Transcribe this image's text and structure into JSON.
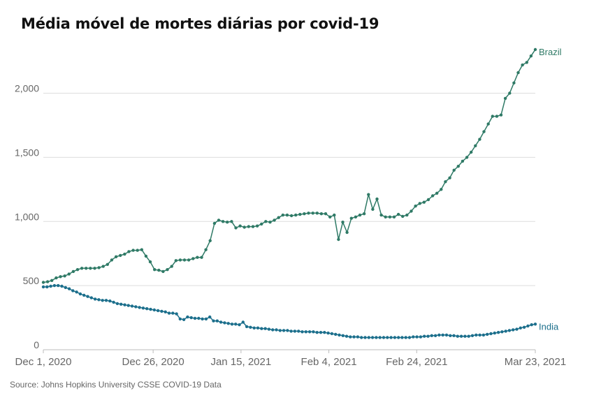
{
  "title": "Média móvel de mortes diárias por covid-19",
  "source": "Source: Johns Hopkins University CSSE COVID-19 Data",
  "chart_data": {
    "type": "line",
    "title": "Média móvel de mortes diárias por covid-19",
    "xlabel": "",
    "ylabel": "",
    "ylim": [
      0,
      2400
    ],
    "yticks": [
      0,
      500,
      1000,
      1500,
      2000
    ],
    "ytick_labels": [
      "0",
      "500",
      "1,000",
      "1,500",
      "2,000"
    ],
    "xticks": [
      "2020-12-01",
      "2020-12-26",
      "2021-01-15",
      "2021-02-04",
      "2021-02-24",
      "2021-03-23"
    ],
    "xtick_labels": [
      "Dec 1, 2020",
      "Dec 26, 2020",
      "Jan 15, 2021",
      "Feb 4, 2021",
      "Feb 24, 2021",
      "Mar 23, 2021"
    ],
    "grid": true,
    "legend": "inline labels at line ends",
    "series": [
      {
        "name": "Brazil",
        "color": "#2f7a66",
        "start_date": "2020-12-01",
        "values": [
          525,
          530,
          540,
          560,
          570,
          575,
          590,
          610,
          625,
          635,
          635,
          635,
          635,
          640,
          650,
          665,
          700,
          725,
          735,
          745,
          765,
          775,
          775,
          780,
          730,
          685,
          625,
          620,
          610,
          625,
          650,
          695,
          700,
          700,
          700,
          710,
          720,
          720,
          780,
          850,
          985,
          1010,
          1000,
          995,
          1000,
          950,
          965,
          955,
          960,
          960,
          965,
          980,
          1000,
          995,
          1010,
          1030,
          1050,
          1050,
          1045,
          1050,
          1055,
          1060,
          1065,
          1065,
          1065,
          1060,
          1060,
          1035,
          1050,
          860,
          995,
          915,
          1025,
          1035,
          1050,
          1060,
          1210,
          1095,
          1175,
          1050,
          1035,
          1035,
          1035,
          1055,
          1040,
          1050,
          1080,
          1120,
          1140,
          1150,
          1170,
          1200,
          1220,
          1250,
          1310,
          1340,
          1400,
          1430,
          1470,
          1500,
          1540,
          1590,
          1640,
          1700,
          1760,
          1820,
          1820,
          1830,
          1960,
          2000,
          2080,
          2160,
          2220,
          2240,
          2290,
          2340
        ]
      },
      {
        "name": "India",
        "color": "#1c6f8c",
        "start_date": "2020-12-01",
        "values": [
          490,
          490,
          495,
          500,
          500,
          495,
          485,
          475,
          460,
          450,
          435,
          425,
          415,
          405,
          395,
          390,
          385,
          385,
          380,
          370,
          360,
          355,
          350,
          345,
          340,
          335,
          330,
          325,
          320,
          315,
          310,
          305,
          300,
          295,
          285,
          285,
          280,
          240,
          235,
          255,
          250,
          245,
          245,
          240,
          240,
          255,
          225,
          225,
          215,
          210,
          205,
          200,
          200,
          195,
          215,
          180,
          175,
          170,
          170,
          165,
          165,
          160,
          155,
          155,
          150,
          150,
          150,
          145,
          145,
          145,
          140,
          140,
          140,
          140,
          135,
          135,
          135,
          130,
          125,
          120,
          115,
          110,
          105,
          100,
          100,
          100,
          95,
          95,
          95,
          95,
          95,
          95,
          95,
          95,
          95,
          95,
          95,
          95,
          95,
          95,
          100,
          100,
          100,
          105,
          105,
          110,
          110,
          115,
          115,
          115,
          110,
          110,
          105,
          105,
          105,
          105,
          110,
          115,
          115,
          115,
          120,
          125,
          130,
          135,
          140,
          145,
          150,
          155,
          160,
          170,
          175,
          185,
          195,
          200
        ]
      }
    ]
  }
}
